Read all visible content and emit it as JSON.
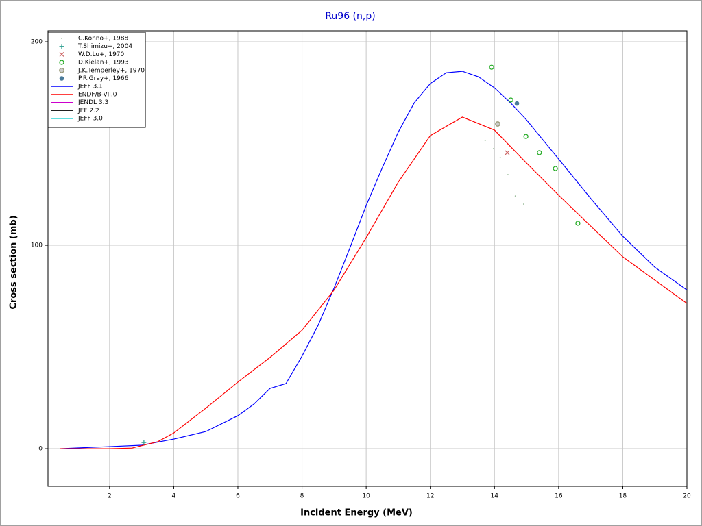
{
  "chart_data": {
    "type": "line",
    "title": "Ru96 (n,p)",
    "x_label": "Incident Energy (MeV)",
    "y_label": "Cross section (mb)",
    "xlim": [
      0.08,
      20
    ],
    "ylim": [
      -18.5,
      205.4
    ],
    "xticks": [
      2,
      4,
      6,
      8,
      10,
      12,
      14,
      16,
      18,
      20
    ],
    "yticks": [
      0,
      100,
      200
    ],
    "grid": true,
    "legend": "upper-left",
    "series": [
      {
        "name": "C.Konno+, 1988",
        "mode": "markers",
        "marker": "dot",
        "color": "#99bb99",
        "x": [
          13.71,
          13.97,
          14.18,
          14.42,
          14.65,
          14.91
        ],
        "values": [
          151.5,
          147.5,
          143.1,
          134.7,
          124.2,
          120.2
        ]
      },
      {
        "name": "T.Shimizu+, 2004",
        "mode": "markers",
        "marker": "plus",
        "color": "#2a9d8f",
        "x": [
          3.07
        ],
        "values": [
          3.0
        ]
      },
      {
        "name": "W.D.Lu+, 1970",
        "mode": "markers",
        "marker": "x",
        "color": "#cc6666",
        "x": [
          14.4
        ],
        "values": [
          145.5
        ]
      },
      {
        "name": "D.Kielan+, 1993",
        "mode": "markers",
        "marker": "circle",
        "color": "#22aa22",
        "x": [
          13.91,
          14.51,
          14.98,
          15.4,
          15.9,
          16.6
        ],
        "values": [
          187.5,
          171.4,
          153.5,
          145.5,
          137.7,
          110.8
        ]
      },
      {
        "name": "J.K.Temperley+, 1970",
        "mode": "markers",
        "marker": "hatched-circle",
        "color": "#999977",
        "x": [
          14.1
        ],
        "values": [
          159.6
        ]
      },
      {
        "name": "P.R.Gray+, 1966",
        "mode": "markers",
        "marker": "filled-circle",
        "color": "#4a7a9a",
        "x": [
          14.7
        ],
        "values": [
          169.7
        ]
      },
      {
        "name": "JEFF 3.1",
        "mode": "line",
        "color": "#0000ff",
        "x": [
          0.46,
          2,
          3,
          4,
          5,
          6,
          6.5,
          7,
          7.5,
          8,
          8.5,
          9,
          9.5,
          10,
          10.5,
          11,
          11.5,
          12,
          12.5,
          13,
          13.5,
          14,
          14.5,
          15,
          16,
          17,
          18,
          19,
          20
        ],
        "values": [
          0,
          1,
          1.7,
          4.7,
          8.4,
          16.2,
          21.9,
          29.6,
          32,
          45.5,
          60.6,
          79,
          99,
          119.5,
          138,
          155.6,
          170,
          179.5,
          184.8,
          185.5,
          182.8,
          177.4,
          170,
          161.6,
          142.4,
          123,
          104.4,
          89.2,
          78
        ]
      },
      {
        "name": "ENDF/B-VII.0",
        "mode": "line",
        "color": "#ff0000",
        "x": [
          0.46,
          2,
          2.7,
          3.5,
          4,
          5,
          6,
          7,
          8,
          9,
          10,
          11,
          12,
          13,
          14,
          15,
          16,
          17,
          18,
          20
        ],
        "values": [
          0,
          0,
          0.3,
          3.4,
          7.7,
          19.9,
          32.7,
          44.8,
          58.2,
          78,
          103.7,
          131,
          153.9,
          163,
          156.6,
          140.4,
          124.6,
          109.4,
          94.3,
          71.4
        ]
      },
      {
        "name": "JENDL 3.3",
        "mode": "line",
        "color": "#cc00cc",
        "x": [],
        "values": []
      },
      {
        "name": "JEF 2.2",
        "mode": "line",
        "color": "#000000",
        "x": [],
        "values": []
      },
      {
        "name": "JEFF 3.0",
        "mode": "line",
        "color": "#00cccc",
        "x": [],
        "values": []
      }
    ]
  }
}
